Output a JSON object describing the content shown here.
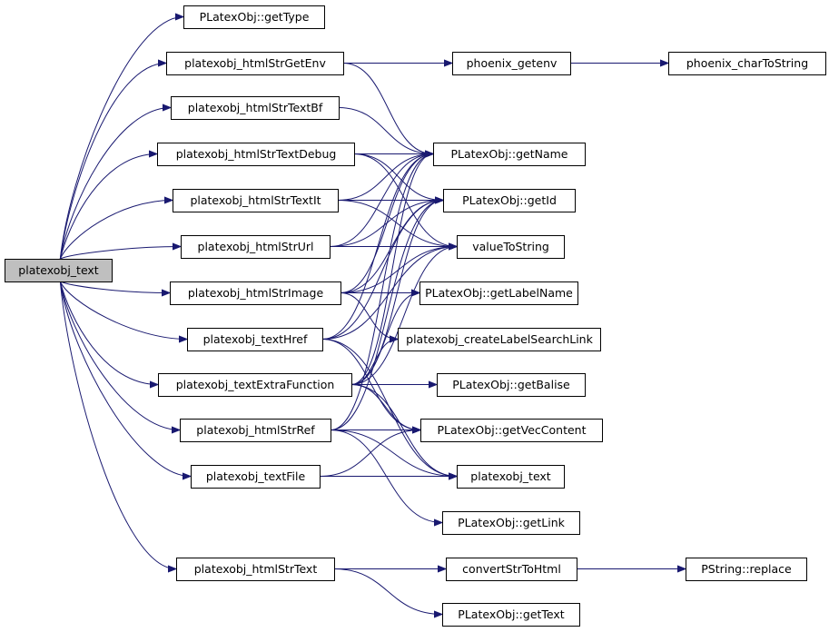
{
  "diagram": {
    "nodes": [
      {
        "id": "root",
        "label": "platexobj_text",
        "root": true
      },
      {
        "id": "getType",
        "label": "PLatexObj::getType"
      },
      {
        "id": "htmlStrGetEnv",
        "label": "platexobj_htmlStrGetEnv"
      },
      {
        "id": "htmlStrTextBf",
        "label": "platexobj_htmlStrTextBf"
      },
      {
        "id": "htmlStrTextDebug",
        "label": "platexobj_htmlStrTextDebug"
      },
      {
        "id": "htmlStrTextIt",
        "label": "platexobj_htmlStrTextIt"
      },
      {
        "id": "htmlStrUrl",
        "label": "platexobj_htmlStrUrl"
      },
      {
        "id": "htmlStrImage",
        "label": "platexobj_htmlStrImage"
      },
      {
        "id": "textHref",
        "label": "platexobj_textHref"
      },
      {
        "id": "textExtraFunction",
        "label": "platexobj_textExtraFunction"
      },
      {
        "id": "htmlStrRef",
        "label": "platexobj_htmlStrRef"
      },
      {
        "id": "textFile",
        "label": "platexobj_textFile"
      },
      {
        "id": "htmlStrText",
        "label": "platexobj_htmlStrText"
      },
      {
        "id": "phoenix_getenv",
        "label": "phoenix_getenv"
      },
      {
        "id": "phoenix_charToString",
        "label": "phoenix_charToString"
      },
      {
        "id": "getName",
        "label": "PLatexObj::getName"
      },
      {
        "id": "getId",
        "label": "PLatexObj::getId"
      },
      {
        "id": "valueToString",
        "label": "valueToString"
      },
      {
        "id": "getLabelName",
        "label": "PLatexObj::getLabelName"
      },
      {
        "id": "createLabelSearchLink",
        "label": "platexobj_createLabelSearchLink"
      },
      {
        "id": "getBalise",
        "label": "PLatexObj::getBalise"
      },
      {
        "id": "getVecContent",
        "label": "PLatexObj::getVecContent"
      },
      {
        "id": "text2",
        "label": "platexobj_text"
      },
      {
        "id": "getLink",
        "label": "PLatexObj::getLink"
      },
      {
        "id": "convertStrToHtml",
        "label": "convertStrToHtml"
      },
      {
        "id": "replace",
        "label": "PString::replace"
      },
      {
        "id": "getText",
        "label": "PLatexObj::getText"
      }
    ],
    "edges": [
      [
        "root",
        "getType"
      ],
      [
        "root",
        "htmlStrGetEnv"
      ],
      [
        "root",
        "htmlStrTextBf"
      ],
      [
        "root",
        "htmlStrTextDebug"
      ],
      [
        "root",
        "htmlStrTextIt"
      ],
      [
        "root",
        "htmlStrUrl"
      ],
      [
        "root",
        "htmlStrImage"
      ],
      [
        "root",
        "textHref"
      ],
      [
        "root",
        "textExtraFunction"
      ],
      [
        "root",
        "htmlStrRef"
      ],
      [
        "root",
        "textFile"
      ],
      [
        "root",
        "htmlStrText"
      ],
      [
        "htmlStrGetEnv",
        "phoenix_getenv"
      ],
      [
        "htmlStrGetEnv",
        "getName"
      ],
      [
        "phoenix_getenv",
        "phoenix_charToString"
      ],
      [
        "htmlStrTextBf",
        "getName"
      ],
      [
        "htmlStrTextDebug",
        "getName"
      ],
      [
        "htmlStrTextDebug",
        "getId"
      ],
      [
        "htmlStrTextDebug",
        "valueToString"
      ],
      [
        "htmlStrTextIt",
        "getName"
      ],
      [
        "htmlStrTextIt",
        "getId"
      ],
      [
        "htmlStrTextIt",
        "valueToString"
      ],
      [
        "htmlStrUrl",
        "getName"
      ],
      [
        "htmlStrUrl",
        "getId"
      ],
      [
        "htmlStrUrl",
        "valueToString"
      ],
      [
        "htmlStrImage",
        "getName"
      ],
      [
        "htmlStrImage",
        "getId"
      ],
      [
        "htmlStrImage",
        "valueToString"
      ],
      [
        "htmlStrImage",
        "getLabelName"
      ],
      [
        "htmlStrImage",
        "createLabelSearchLink"
      ],
      [
        "textHref",
        "getName"
      ],
      [
        "textHref",
        "getId"
      ],
      [
        "textHref",
        "valueToString"
      ],
      [
        "textHref",
        "getVecContent"
      ],
      [
        "textHref",
        "text2"
      ],
      [
        "textExtraFunction",
        "getName"
      ],
      [
        "textExtraFunction",
        "getId"
      ],
      [
        "textExtraFunction",
        "valueToString"
      ],
      [
        "textExtraFunction",
        "getLabelName"
      ],
      [
        "textExtraFunction",
        "createLabelSearchLink"
      ],
      [
        "textExtraFunction",
        "getBalise"
      ],
      [
        "textExtraFunction",
        "getVecContent"
      ],
      [
        "textExtraFunction",
        "text2"
      ],
      [
        "htmlStrRef",
        "getName"
      ],
      [
        "htmlStrRef",
        "getId"
      ],
      [
        "htmlStrRef",
        "getVecContent"
      ],
      [
        "htmlStrRef",
        "text2"
      ],
      [
        "htmlStrRef",
        "getLink"
      ],
      [
        "textFile",
        "getVecContent"
      ],
      [
        "textFile",
        "text2"
      ],
      [
        "htmlStrText",
        "convertStrToHtml"
      ],
      [
        "htmlStrText",
        "getText"
      ],
      [
        "convertStrToHtml",
        "replace"
      ]
    ]
  }
}
